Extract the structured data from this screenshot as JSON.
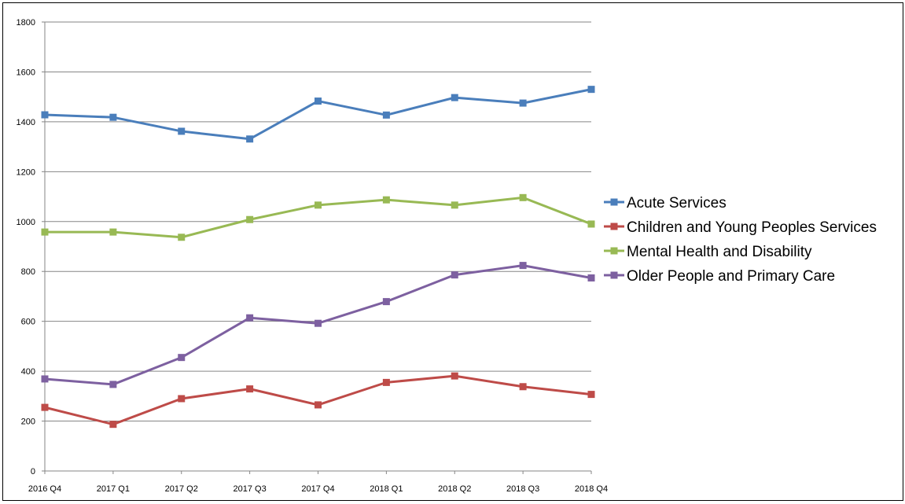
{
  "chart_data": {
    "type": "line",
    "categories": [
      "2016 Q4",
      "2017 Q1",
      "2017 Q2",
      "2017 Q3",
      "2017 Q4",
      "2018 Q1",
      "2018 Q2",
      "2018 Q3",
      "2018 Q4"
    ],
    "ylim": [
      0,
      1800
    ],
    "yticks": [
      0,
      200,
      400,
      600,
      800,
      1000,
      1200,
      1400,
      1600,
      1800
    ],
    "grid": true,
    "legend_position": "right",
    "series": [
      {
        "name": "Acute Services",
        "color": "#4a7ebb",
        "values": [
          1428,
          1418,
          1362,
          1331,
          1483,
          1427,
          1497,
          1475,
          1530
        ]
      },
      {
        "name": "Children and Young Peoples Services",
        "color": "#be4b48",
        "values": [
          255,
          187,
          290,
          329,
          265,
          355,
          381,
          338,
          307
        ]
      },
      {
        "name": "Mental Health and Disability",
        "color": "#98b954",
        "values": [
          958,
          958,
          937,
          1008,
          1066,
          1087,
          1066,
          1096,
          990
        ]
      },
      {
        "name": "Older People and Primary Care",
        "color": "#7d60a0",
        "values": [
          369,
          347,
          455,
          614,
          592,
          679,
          786,
          824,
          774
        ]
      }
    ]
  }
}
